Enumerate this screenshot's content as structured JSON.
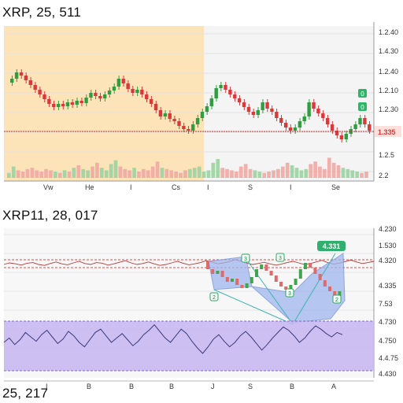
{
  "chart_data": [
    {
      "type": "candlestick",
      "title": "XRP, 25, 511",
      "y_tick_labels": [
        "1.2.40",
        "1.4.30",
        "1.2.40",
        "1.2.10",
        "1.2.30",
        "1.2.50",
        "1.2.5",
        "2.2"
      ],
      "price_line_label": "1.335",
      "badges": [
        "0",
        "0"
      ],
      "x_tick_labels": [
        "Vw",
        "He",
        "I",
        "Cs",
        "I",
        "S",
        "I",
        "Se"
      ],
      "candles": [
        {
          "o": 165,
          "c": 170
        },
        {
          "o": 170,
          "c": 178
        },
        {
          "o": 178,
          "c": 174
        },
        {
          "o": 174,
          "c": 168
        },
        {
          "o": 168,
          "c": 162
        },
        {
          "o": 162,
          "c": 156
        },
        {
          "o": 156,
          "c": 150
        },
        {
          "o": 150,
          "c": 144
        },
        {
          "o": 144,
          "c": 138
        },
        {
          "o": 138,
          "c": 134
        },
        {
          "o": 134,
          "c": 138
        },
        {
          "o": 138,
          "c": 135
        },
        {
          "o": 135,
          "c": 140
        },
        {
          "o": 140,
          "c": 137
        },
        {
          "o": 137,
          "c": 142
        },
        {
          "o": 142,
          "c": 139
        },
        {
          "o": 139,
          "c": 146
        },
        {
          "o": 146,
          "c": 152
        },
        {
          "o": 152,
          "c": 148
        },
        {
          "o": 148,
          "c": 145
        },
        {
          "o": 145,
          "c": 150
        },
        {
          "o": 150,
          "c": 155
        },
        {
          "o": 155,
          "c": 160
        },
        {
          "o": 160,
          "c": 170
        },
        {
          "o": 170,
          "c": 164
        },
        {
          "o": 164,
          "c": 157
        },
        {
          "o": 157,
          "c": 152
        },
        {
          "o": 152,
          "c": 156
        },
        {
          "o": 156,
          "c": 150
        },
        {
          "o": 150,
          "c": 144
        },
        {
          "o": 144,
          "c": 138
        },
        {
          "o": 138,
          "c": 130
        },
        {
          "o": 130,
          "c": 122
        },
        {
          "o": 122,
          "c": 126
        },
        {
          "o": 126,
          "c": 119
        },
        {
          "o": 119,
          "c": 116
        },
        {
          "o": 116,
          "c": 110
        },
        {
          "o": 110,
          "c": 106
        },
        {
          "o": 106,
          "c": 104
        },
        {
          "o": 104,
          "c": 112
        },
        {
          "o": 112,
          "c": 120
        },
        {
          "o": 120,
          "c": 128
        },
        {
          "o": 128,
          "c": 135
        },
        {
          "o": 135,
          "c": 145
        },
        {
          "o": 145,
          "c": 158
        },
        {
          "o": 158,
          "c": 162
        },
        {
          "o": 162,
          "c": 156
        },
        {
          "o": 156,
          "c": 150
        },
        {
          "o": 150,
          "c": 145
        },
        {
          "o": 145,
          "c": 140
        },
        {
          "o": 140,
          "c": 134
        },
        {
          "o": 134,
          "c": 128
        },
        {
          "o": 128,
          "c": 124
        },
        {
          "o": 124,
          "c": 130
        },
        {
          "o": 130,
          "c": 140
        },
        {
          "o": 140,
          "c": 132
        },
        {
          "o": 132,
          "c": 128
        },
        {
          "o": 128,
          "c": 120
        },
        {
          "o": 120,
          "c": 114
        },
        {
          "o": 114,
          "c": 108
        },
        {
          "o": 108,
          "c": 104
        },
        {
          "o": 104,
          "c": 108
        },
        {
          "o": 108,
          "c": 116
        },
        {
          "o": 116,
          "c": 122
        },
        {
          "o": 122,
          "c": 140
        },
        {
          "o": 140,
          "c": 132
        },
        {
          "o": 132,
          "c": 126
        },
        {
          "o": 126,
          "c": 120
        },
        {
          "o": 120,
          "c": 112
        },
        {
          "o": 112,
          "c": 104
        },
        {
          "o": 104,
          "c": 98
        },
        {
          "o": 98,
          "c": 93
        },
        {
          "o": 93,
          "c": 100
        },
        {
          "o": 100,
          "c": 106
        },
        {
          "o": 106,
          "c": 112
        },
        {
          "o": 112,
          "c": 120
        },
        {
          "o": 120,
          "c": 112
        },
        {
          "o": 112,
          "c": 104
        }
      ],
      "volumes": [
        4,
        9,
        6,
        5,
        7,
        8,
        6,
        5,
        7,
        6,
        5,
        4,
        6,
        5,
        8,
        10,
        7,
        6,
        9,
        12,
        8,
        6,
        11,
        14,
        9,
        7,
        6,
        8,
        5,
        7,
        6,
        9,
        13,
        8,
        7,
        6,
        5,
        4,
        6,
        7,
        8,
        9,
        5,
        6,
        12,
        15,
        8,
        7,
        6,
        5,
        9,
        11,
        7,
        6,
        5,
        4,
        5,
        6,
        7,
        9,
        12,
        10,
        8,
        6,
        7,
        11,
        13,
        9,
        7,
        16,
        12,
        10,
        8,
        7,
        6,
        5,
        4,
        5
      ]
    },
    {
      "type": "line",
      "title": "XRP11, 28, 017",
      "y_tick_labels": [
        "4.230",
        "1.530",
        "4.320",
        "4.335",
        "7.53",
        "4.730",
        "4.750",
        "4.4.75",
        "4.430"
      ],
      "callout_label": "4.331",
      "marker_labels": [
        "3",
        "3",
        "2",
        "3",
        "2"
      ],
      "x_tick_labels": [
        "I",
        "B",
        "B",
        "B",
        "J",
        "S",
        "B",
        "A"
      ],
      "line_values": [
        1.0,
        1.05,
        1.02,
        0.98,
        1.04,
        1.06,
        1.0,
        0.97,
        1.03,
        1.08,
        1.02,
        0.99,
        1.05,
        1.1,
        1.03,
        1.0,
        1.06,
        1.04,
        0.98,
        1.02,
        1.07,
        1.12,
        1.05,
        1.0,
        1.03,
        1.08,
        1.02,
        0.97,
        1.0,
        1.05,
        1.1,
        1.04,
        0.99,
        1.02,
        1.06,
        1.12,
        1.08,
        1.02,
        1.05,
        1.09,
        1.15,
        1.1,
        1.04,
        1.0,
        1.03,
        1.07,
        1.02,
        0.98,
        1.01,
        1.06,
        1.1,
        1.05,
        1.0,
        1.03,
        1.08,
        1.13,
        1.06,
        1.01,
        1.04,
        1.09,
        1.14,
        1.08,
        1.03,
        1.06,
        1.1
      ],
      "oscillator_values": [
        0.5,
        0.58,
        0.46,
        0.55,
        0.68,
        0.6,
        0.52,
        0.64,
        0.72,
        0.6,
        0.48,
        0.56,
        0.7,
        0.62,
        0.5,
        0.42,
        0.55,
        0.68,
        0.74,
        0.62,
        0.5,
        0.58,
        0.66,
        0.55,
        0.44,
        0.52,
        0.64,
        0.72,
        0.82,
        0.7,
        0.58,
        0.5,
        0.62,
        0.74,
        0.66,
        0.52,
        0.4,
        0.3,
        0.42,
        0.56,
        0.64,
        0.52,
        0.42,
        0.5,
        0.62,
        0.7,
        0.6,
        0.48,
        0.36,
        0.46,
        0.58,
        0.68,
        0.78,
        0.72,
        0.62,
        0.5,
        0.58,
        0.7,
        0.8,
        0.74,
        0.66,
        0.6,
        0.68,
        0.64
      ],
      "band_candles": [
        {
          "o": 40,
          "c": 30
        },
        {
          "o": 30,
          "c": 24
        },
        {
          "o": 24,
          "c": 28
        },
        {
          "o": 28,
          "c": 20
        },
        {
          "o": 20,
          "c": 14
        },
        {
          "o": 14,
          "c": 18
        },
        {
          "o": 18,
          "c": 10
        },
        {
          "o": 10,
          "c": 6
        },
        {
          "o": 6,
          "c": 12
        },
        {
          "o": 12,
          "c": 20
        },
        {
          "o": 20,
          "c": 30
        },
        {
          "o": 30,
          "c": 36
        },
        {
          "o": 36,
          "c": 28
        },
        {
          "o": 28,
          "c": 22
        },
        {
          "o": 22,
          "c": 14
        },
        {
          "o": 14,
          "c": 8
        },
        {
          "o": 8,
          "c": 4
        },
        {
          "o": 4,
          "c": 10
        },
        {
          "o": 10,
          "c": 18
        },
        {
          "o": 18,
          "c": 30
        },
        {
          "o": 30,
          "c": 38
        },
        {
          "o": 38,
          "c": 32
        },
        {
          "o": 32,
          "c": 24
        },
        {
          "o": 24,
          "c": 16
        },
        {
          "o": 16,
          "c": 8
        },
        {
          "o": 8,
          "c": 2
        },
        {
          "o": 2,
          "c": -4
        },
        {
          "o": -4,
          "c": 2
        }
      ]
    }
  ],
  "footer": {
    "label": "25, 217"
  },
  "colors": {
    "up": "#2e9e3e",
    "down": "#d83a3a",
    "shade": "#fde3b8",
    "osc_fill": "#c9b8f2",
    "osc_line": "#3a3a7a",
    "band": "#9fb7ee",
    "price_line": "#c0302f",
    "callout": "#2fb06e"
  }
}
